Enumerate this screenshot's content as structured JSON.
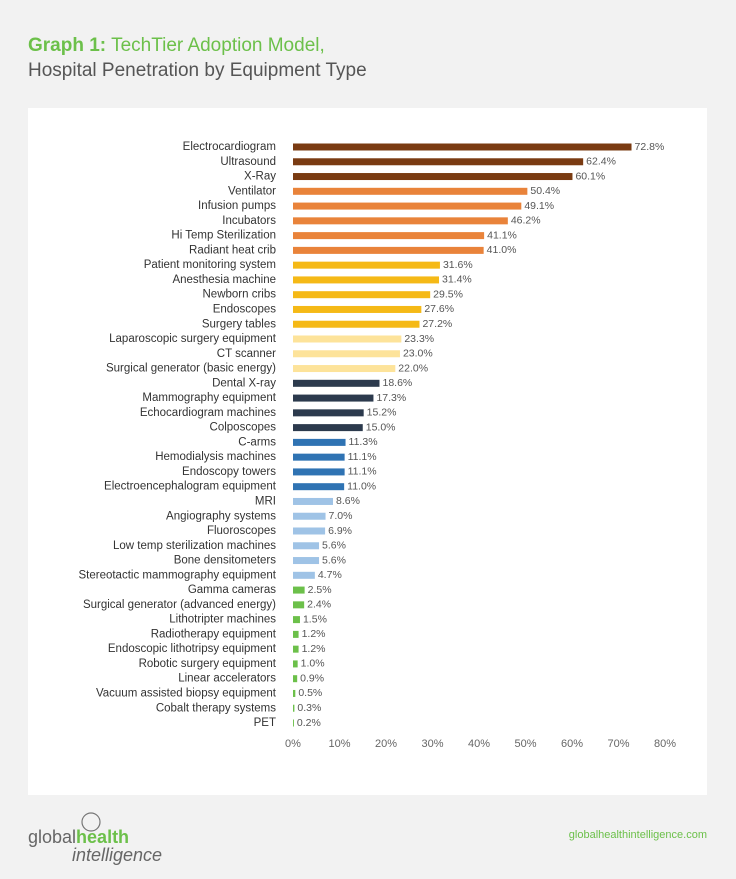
{
  "chart_data": {
    "type": "barh",
    "title_prefix": "Graph 1:",
    "title": "TechTier Adoption Model,",
    "subtitle": "Hospital Penetration by Equipment Type",
    "categories": [
      "Electrocardiogram",
      "Ultrasound",
      "X-Ray",
      "Ventilator",
      "Infusion pumps",
      "Incubators",
      "Hi Temp Sterilization",
      "Radiant heat crib",
      "Patient monitoring system",
      "Anesthesia machine",
      "Newborn cribs",
      "Endoscopes",
      "Surgery tables",
      "Laparoscopic surgery equipment",
      "CT scanner",
      "Surgical generator (basic energy)",
      "Dental X-ray",
      "Mammography equipment",
      "Echocardiogram machines",
      "Colposcopes",
      "C-arms",
      "Hemodialysis machines",
      "Endoscopy towers",
      "Electroencephalogram equipment",
      "MRI",
      "Angiography systems",
      "Fluoroscopes",
      "Low temp sterilization machines",
      "Bone densitometers",
      "Stereotactic mammography equipment",
      "Gamma cameras",
      "Surgical generator (advanced energy)",
      "Lithotripter machines",
      "Radiotherapy equipment",
      "Endoscopic lithotripsy equipment",
      "Robotic surgery equipment",
      "Linear accelerators",
      "Vacuum assisted biopsy equipment",
      "Cobalt therapy systems",
      "PET"
    ],
    "values": [
      72.8,
      62.4,
      60.1,
      50.4,
      49.1,
      46.2,
      41.1,
      41.0,
      31.6,
      31.4,
      29.5,
      27.6,
      27.2,
      23.3,
      23.0,
      22.0,
      18.6,
      17.3,
      15.2,
      15.0,
      11.3,
      11.1,
      11.1,
      11.0,
      8.6,
      7.0,
      6.9,
      5.6,
      5.6,
      4.7,
      2.5,
      2.4,
      1.5,
      1.2,
      1.2,
      1.0,
      0.9,
      0.5,
      0.3,
      0.2
    ],
    "value_labels": [
      "72.8%",
      "62.4%",
      "60.1%",
      "50.4%",
      "49.1%",
      "46.2%",
      "41.1%",
      "41.0%",
      "31.6%",
      "31.4%",
      "29.5%",
      "27.6%",
      "27.2%",
      "23.3%",
      "23.0%",
      "22.0%",
      "18.6%",
      "17.3%",
      "15.2%",
      "15.0%",
      "11.3%",
      "11.1%",
      "11.1%",
      "11.0%",
      "8.6%",
      "7.0%",
      "6.9%",
      "5.6%",
      "5.6%",
      "4.7%",
      "2.5%",
      "2.4%",
      "1.5%",
      "1.2%",
      "1.2%",
      "1.0%",
      "0.9%",
      "0.5%",
      "0.3%",
      "0.2%"
    ],
    "colors": [
      "#7a3b12",
      "#7a3b12",
      "#7a3b12",
      "#e9833a",
      "#e9833a",
      "#e9833a",
      "#e9833a",
      "#e9833a",
      "#f5b916",
      "#f5b916",
      "#f5b916",
      "#f5b916",
      "#f5b916",
      "#fde39a",
      "#fde39a",
      "#fde39a",
      "#2c3a4d",
      "#2c3a4d",
      "#2c3a4d",
      "#2c3a4d",
      "#2f73b3",
      "#2f73b3",
      "#2f73b3",
      "#2f73b3",
      "#9fc3e6",
      "#9fc3e6",
      "#9fc3e6",
      "#9fc3e6",
      "#9fc3e6",
      "#9fc3e6",
      "#6cc04a",
      "#6cc04a",
      "#6cc04a",
      "#6cc04a",
      "#6cc04a",
      "#6cc04a",
      "#6cc04a",
      "#6cc04a",
      "#6cc04a",
      "#6cc04a"
    ],
    "xlim": [
      0,
      80
    ],
    "xticks": [
      {
        "value": 0,
        "label": "0%"
      },
      {
        "value": 10,
        "label": "10%"
      },
      {
        "value": 20,
        "label": "20%"
      },
      {
        "value": 30,
        "label": "30%"
      },
      {
        "value": 40,
        "label": "40%"
      },
      {
        "value": 50,
        "label": "50%"
      },
      {
        "value": 60,
        "label": "60%"
      },
      {
        "value": 70,
        "label": "70%"
      },
      {
        "value": 80,
        "label": "80%"
      }
    ]
  },
  "footer": {
    "logo_global": "global",
    "logo_health": "health",
    "logo_intelligence": "intelligence",
    "url": "globalhealthintelligence.com"
  }
}
